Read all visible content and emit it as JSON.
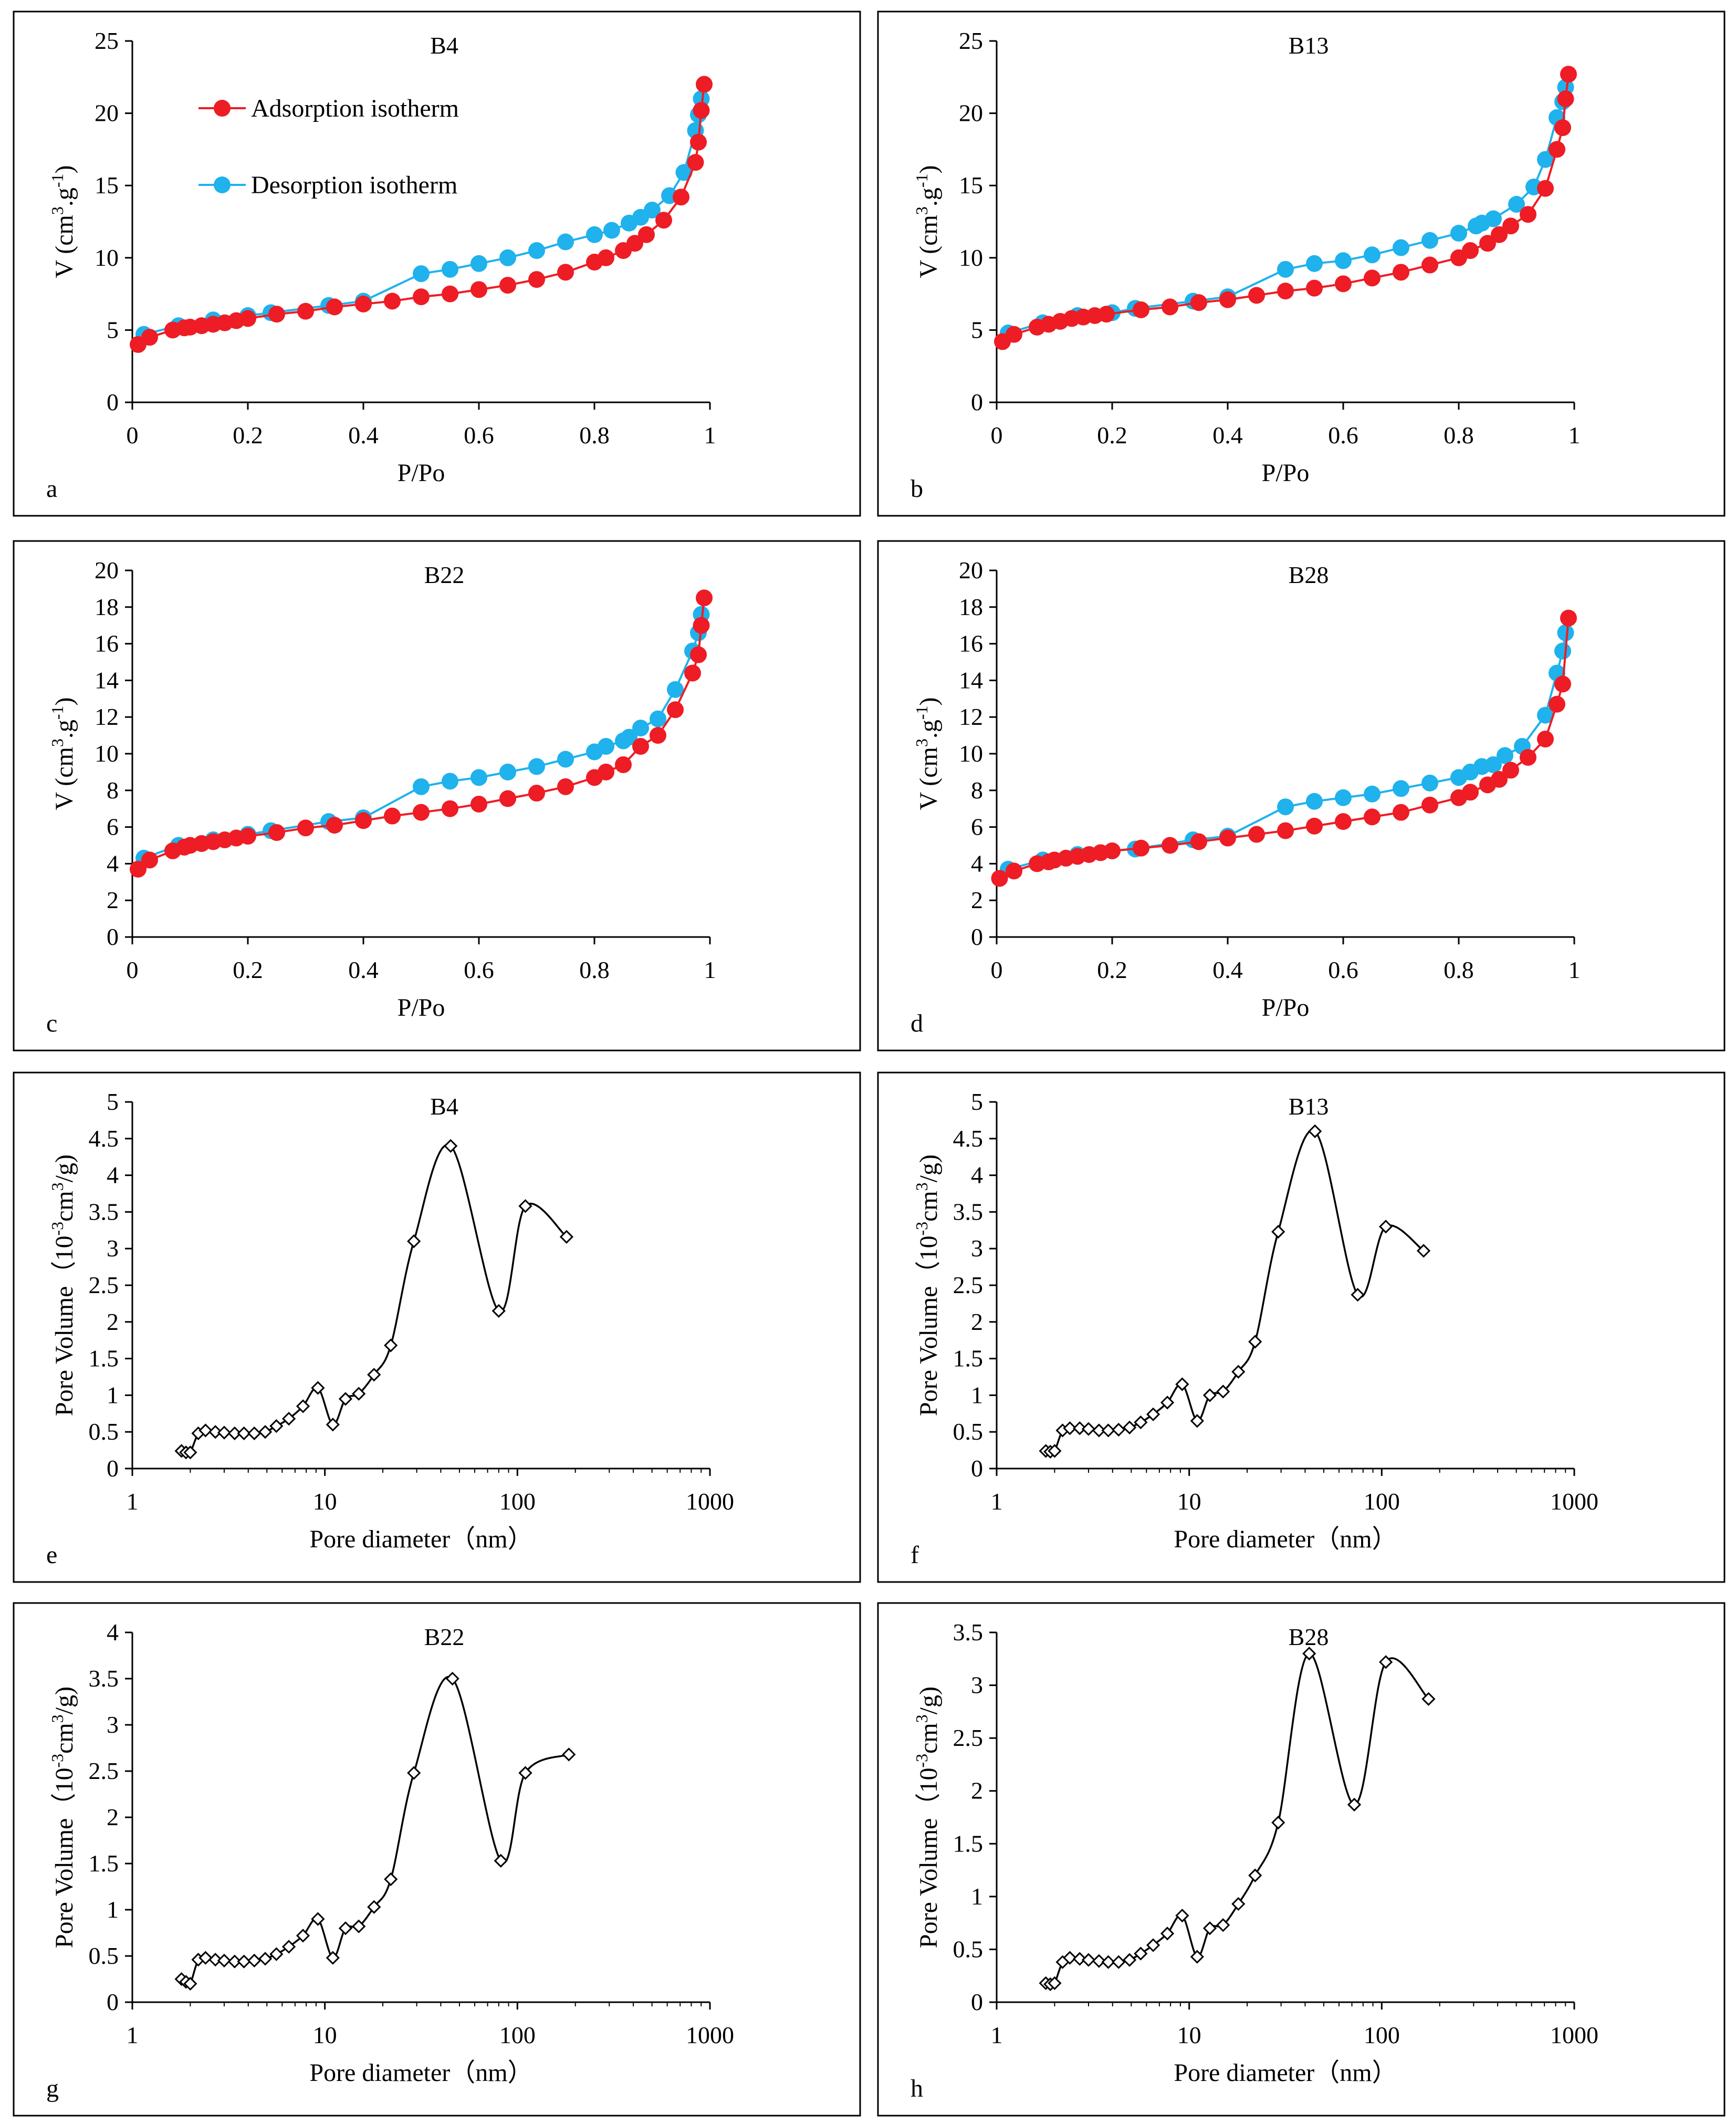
{
  "colors": {
    "adsorption": "#ee1c24",
    "desorption": "#1fb2ec",
    "pore_curve": "#000000",
    "frame": "#000000",
    "background": "#ffffff"
  },
  "chart_data": [
    {
      "type": "line",
      "panel_label": "a",
      "title": "B4",
      "xlabel": "P/Po",
      "ylabel_main": "V (cm",
      "ylabel_sup1": "3",
      "ylabel_mid": ".g",
      "ylabel_sup2": "-1",
      "ylabel_end": ")",
      "xlim": [
        0,
        1
      ],
      "ylim": [
        0,
        25
      ],
      "xticks": [
        0,
        0.2,
        0.4,
        0.6,
        0.8,
        1
      ],
      "xtick_labels": [
        "0",
        "0.2",
        "0.4",
        "0.6",
        "0.8",
        "1"
      ],
      "yticks": [
        0,
        5,
        10,
        15,
        20,
        25
      ],
      "ytick_labels": [
        "0",
        "5",
        "10",
        "15",
        "20",
        "25"
      ],
      "legend": {
        "placement": "top-left",
        "entries": [
          "Adsorption isotherm",
          "Desorption isotherm"
        ]
      },
      "series": [
        {
          "name": "Adsorption isotherm",
          "x": [
            0.01,
            0.03,
            0.07,
            0.09,
            0.1,
            0.12,
            0.14,
            0.16,
            0.18,
            0.2,
            0.25,
            0.3,
            0.35,
            0.4,
            0.45,
            0.5,
            0.55,
            0.6,
            0.65,
            0.7,
            0.75,
            0.8,
            0.82,
            0.85,
            0.87,
            0.89,
            0.92,
            0.95,
            0.975,
            0.98,
            0.985,
            0.99
          ],
          "y": [
            4.0,
            4.5,
            5.0,
            5.15,
            5.2,
            5.3,
            5.4,
            5.5,
            5.65,
            5.8,
            6.1,
            6.3,
            6.6,
            6.8,
            7.0,
            7.3,
            7.5,
            7.8,
            8.1,
            8.5,
            9.0,
            9.7,
            10.0,
            10.5,
            11.0,
            11.6,
            12.6,
            14.2,
            16.6,
            18.0,
            20.2,
            22.0
          ]
        },
        {
          "name": "Desorption isotherm",
          "x": [
            0.02,
            0.08,
            0.14,
            0.2,
            0.24,
            0.34,
            0.4,
            0.5,
            0.55,
            0.6,
            0.65,
            0.7,
            0.75,
            0.8,
            0.83,
            0.86,
            0.88,
            0.9,
            0.93,
            0.955,
            0.975,
            0.98,
            0.985,
            0.99
          ],
          "y": [
            4.7,
            5.3,
            5.7,
            6.0,
            6.2,
            6.7,
            7.0,
            8.9,
            9.2,
            9.6,
            10.0,
            10.5,
            11.1,
            11.6,
            11.9,
            12.4,
            12.8,
            13.3,
            14.3,
            15.9,
            18.8,
            19.9,
            21.0,
            22.0
          ]
        }
      ]
    },
    {
      "type": "line",
      "panel_label": "b",
      "title": "B13",
      "xlabel": "P/Po",
      "ylabel_main": "V (cm",
      "ylabel_sup1": "3",
      "ylabel_mid": ".g",
      "ylabel_sup2": "-1",
      "ylabel_end": ")",
      "xlim": [
        0,
        1
      ],
      "ylim": [
        0,
        25
      ],
      "xticks": [
        0,
        0.2,
        0.4,
        0.6,
        0.8,
        1
      ],
      "xtick_labels": [
        "0",
        "0.2",
        "0.4",
        "0.6",
        "0.8",
        "1"
      ],
      "yticks": [
        0,
        5,
        10,
        15,
        20,
        25
      ],
      "ytick_labels": [
        "0",
        "5",
        "10",
        "15",
        "20",
        "25"
      ],
      "series": [
        {
          "name": "Adsorption isotherm",
          "x": [
            0.01,
            0.03,
            0.07,
            0.09,
            0.11,
            0.13,
            0.15,
            0.17,
            0.19,
            0.25,
            0.3,
            0.35,
            0.4,
            0.45,
            0.5,
            0.55,
            0.6,
            0.65,
            0.7,
            0.75,
            0.8,
            0.82,
            0.85,
            0.87,
            0.89,
            0.92,
            0.95,
            0.97,
            0.98,
            0.985,
            0.99
          ],
          "y": [
            4.2,
            4.7,
            5.2,
            5.4,
            5.6,
            5.8,
            5.9,
            6.0,
            6.1,
            6.4,
            6.6,
            6.9,
            7.1,
            7.4,
            7.7,
            7.9,
            8.2,
            8.6,
            9.0,
            9.5,
            10.0,
            10.5,
            11.0,
            11.6,
            12.2,
            13.0,
            14.8,
            17.5,
            19.0,
            21.0,
            22.7
          ]
        },
        {
          "name": "Desorption isotherm",
          "x": [
            0.02,
            0.08,
            0.14,
            0.2,
            0.24,
            0.34,
            0.4,
            0.5,
            0.55,
            0.6,
            0.65,
            0.7,
            0.75,
            0.8,
            0.83,
            0.84,
            0.86,
            0.9,
            0.93,
            0.95,
            0.97,
            0.98,
            0.985
          ],
          "y": [
            4.8,
            5.5,
            6.0,
            6.2,
            6.5,
            7.0,
            7.3,
            9.2,
            9.6,
            9.8,
            10.2,
            10.7,
            11.2,
            11.7,
            12.2,
            12.4,
            12.7,
            13.7,
            14.9,
            16.8,
            19.7,
            20.8,
            21.8
          ]
        }
      ]
    },
    {
      "type": "line",
      "panel_label": "c",
      "title": "B22",
      "xlabel": "P/Po",
      "ylabel_main": "V (cm",
      "ylabel_sup1": "3",
      "ylabel_mid": ".g",
      "ylabel_sup2": "-1",
      "ylabel_end": ")",
      "xlim": [
        0,
        1
      ],
      "ylim": [
        0,
        20
      ],
      "xticks": [
        0,
        0.2,
        0.4,
        0.6,
        0.8,
        1
      ],
      "xtick_labels": [
        "0",
        "0.2",
        "0.4",
        "0.6",
        "0.8",
        "1"
      ],
      "yticks": [
        0,
        2,
        4,
        6,
        8,
        10,
        12,
        14,
        16,
        18,
        20
      ],
      "ytick_labels": [
        "0",
        "2",
        "4",
        "6",
        "8",
        "10",
        "12",
        "14",
        "16",
        "18",
        "20"
      ],
      "series": [
        {
          "name": "Adsorption isotherm",
          "x": [
            0.01,
            0.03,
            0.07,
            0.09,
            0.1,
            0.12,
            0.14,
            0.16,
            0.18,
            0.2,
            0.25,
            0.3,
            0.35,
            0.4,
            0.45,
            0.5,
            0.55,
            0.6,
            0.65,
            0.7,
            0.75,
            0.8,
            0.82,
            0.85,
            0.88,
            0.91,
            0.94,
            0.97,
            0.98,
            0.985,
            0.99
          ],
          "y": [
            3.7,
            4.2,
            4.7,
            4.9,
            5.0,
            5.1,
            5.2,
            5.3,
            5.4,
            5.5,
            5.7,
            5.95,
            6.1,
            6.35,
            6.6,
            6.8,
            7.0,
            7.25,
            7.55,
            7.85,
            8.2,
            8.7,
            9.0,
            9.4,
            10.4,
            11.0,
            12.4,
            14.4,
            15.4,
            17.0,
            18.5
          ]
        },
        {
          "name": "Desorption isotherm",
          "x": [
            0.02,
            0.08,
            0.14,
            0.2,
            0.24,
            0.34,
            0.4,
            0.5,
            0.55,
            0.6,
            0.65,
            0.7,
            0.75,
            0.8,
            0.82,
            0.85,
            0.86,
            0.88,
            0.91,
            0.94,
            0.97,
            0.98,
            0.985
          ],
          "y": [
            4.3,
            5.0,
            5.3,
            5.6,
            5.8,
            6.3,
            6.5,
            8.2,
            8.5,
            8.7,
            9.0,
            9.3,
            9.7,
            10.1,
            10.4,
            10.7,
            10.9,
            11.4,
            11.9,
            13.5,
            15.6,
            16.6,
            17.6
          ]
        }
      ]
    },
    {
      "type": "line",
      "panel_label": "d",
      "title": "B28",
      "xlabel": "P/Po",
      "ylabel_main": "V (cm",
      "ylabel_sup1": "3",
      "ylabel_mid": ".g",
      "ylabel_sup2": "-1",
      "ylabel_end": ")",
      "xlim": [
        0,
        1
      ],
      "ylim": [
        0,
        20
      ],
      "xticks": [
        0,
        0.2,
        0.4,
        0.6,
        0.8,
        1
      ],
      "xtick_labels": [
        "0",
        "0.2",
        "0.4",
        "0.6",
        "0.8",
        "1"
      ],
      "yticks": [
        0,
        2,
        4,
        6,
        8,
        10,
        12,
        14,
        16,
        18,
        20
      ],
      "ytick_labels": [
        "0",
        "2",
        "4",
        "6",
        "8",
        "10",
        "12",
        "14",
        "16",
        "18",
        "20"
      ],
      "series": [
        {
          "name": "Adsorption isotherm",
          "x": [
            0.005,
            0.03,
            0.07,
            0.09,
            0.1,
            0.12,
            0.14,
            0.16,
            0.18,
            0.2,
            0.25,
            0.3,
            0.35,
            0.4,
            0.45,
            0.5,
            0.55,
            0.6,
            0.65,
            0.7,
            0.75,
            0.8,
            0.82,
            0.85,
            0.87,
            0.89,
            0.92,
            0.95,
            0.97,
            0.98,
            0.99
          ],
          "y": [
            3.2,
            3.6,
            4.0,
            4.1,
            4.2,
            4.3,
            4.4,
            4.5,
            4.6,
            4.7,
            4.85,
            5.0,
            5.2,
            5.4,
            5.6,
            5.8,
            6.05,
            6.3,
            6.55,
            6.8,
            7.2,
            7.6,
            7.9,
            8.3,
            8.6,
            9.1,
            9.8,
            10.8,
            12.7,
            13.8,
            17.4
          ]
        },
        {
          "name": "Desorption isotherm",
          "x": [
            0.02,
            0.08,
            0.14,
            0.2,
            0.24,
            0.34,
            0.4,
            0.5,
            0.55,
            0.6,
            0.65,
            0.7,
            0.75,
            0.8,
            0.82,
            0.84,
            0.86,
            0.88,
            0.91,
            0.95,
            0.97,
            0.98,
            0.985
          ],
          "y": [
            3.7,
            4.2,
            4.5,
            4.7,
            4.8,
            5.3,
            5.5,
            7.1,
            7.4,
            7.6,
            7.8,
            8.1,
            8.4,
            8.7,
            9.0,
            9.3,
            9.4,
            9.9,
            10.4,
            12.1,
            14.4,
            15.6,
            16.6
          ]
        }
      ]
    },
    {
      "type": "line",
      "panel_label": "e",
      "title": "B4",
      "xlabel": "Pore diameter（nm）",
      "ylabel_main": "Pore Volume（10",
      "ylabel_sup1": "-3",
      "ylabel_mid": "cm",
      "ylabel_sup2": "3",
      "ylabel_end": "/g)",
      "xscale": "log",
      "xlim": [
        1,
        1000
      ],
      "ylim": [
        0,
        5
      ],
      "xticks": [
        1,
        10,
        100,
        1000
      ],
      "xtick_labels": [
        "1",
        "10",
        "100",
        "1000"
      ],
      "yticks": [
        0,
        0.5,
        1,
        1.5,
        2,
        2.5,
        3,
        3.5,
        4,
        4.5,
        5
      ],
      "ytick_labels": [
        "0",
        "0.5",
        "1",
        "1.5",
        "2",
        "2.5",
        "3",
        "3.5",
        "4",
        "4.5",
        "5"
      ],
      "series": [
        {
          "name": "Pore volume",
          "x": [
            1.8,
            1.9,
            2.0,
            2.2,
            2.4,
            2.7,
            3.0,
            3.4,
            3.8,
            4.3,
            4.9,
            5.6,
            6.5,
            7.7,
            9.2,
            11.0,
            12.8,
            15.0,
            18.0,
            22.0,
            29.0,
            45.0,
            80.0,
            110.0,
            180.0
          ],
          "y": [
            0.24,
            0.22,
            0.22,
            0.48,
            0.52,
            0.5,
            0.49,
            0.48,
            0.48,
            0.48,
            0.5,
            0.58,
            0.68,
            0.85,
            1.1,
            0.6,
            0.95,
            1.02,
            1.28,
            1.68,
            3.1,
            4.4,
            2.15,
            3.58,
            3.16
          ]
        }
      ]
    },
    {
      "type": "line",
      "panel_label": "f",
      "title": "B13",
      "xlabel": "Pore diameter（nm）",
      "ylabel_main": "Pore Volume（10",
      "ylabel_sup1": "-3",
      "ylabel_mid": "cm",
      "ylabel_sup2": "3",
      "ylabel_end": "/g)",
      "xscale": "log",
      "xlim": [
        1,
        1000
      ],
      "ylim": [
        0,
        5
      ],
      "xticks": [
        1,
        10,
        100,
        1000
      ],
      "xtick_labels": [
        "1",
        "10",
        "100",
        "1000"
      ],
      "yticks": [
        0,
        0.5,
        1,
        1.5,
        2,
        2.5,
        3,
        3.5,
        4,
        4.5,
        5
      ],
      "ytick_labels": [
        "0",
        "0.5",
        "1",
        "1.5",
        "2",
        "2.5",
        "3",
        "3.5",
        "4",
        "4.5",
        "5"
      ],
      "series": [
        {
          "name": "Pore volume",
          "x": [
            1.8,
            1.9,
            2.0,
            2.2,
            2.4,
            2.7,
            3.0,
            3.4,
            3.8,
            4.3,
            4.9,
            5.6,
            6.5,
            7.7,
            9.2,
            11.0,
            12.8,
            15.0,
            18.0,
            22.0,
            29.0,
            45.0,
            75.0,
            105.0,
            165.0
          ],
          "y": [
            0.24,
            0.23,
            0.24,
            0.52,
            0.55,
            0.55,
            0.54,
            0.52,
            0.52,
            0.53,
            0.56,
            0.63,
            0.74,
            0.9,
            1.15,
            0.65,
            1.0,
            1.05,
            1.32,
            1.73,
            3.23,
            4.6,
            2.37,
            3.3,
            2.97
          ]
        }
      ]
    },
    {
      "type": "line",
      "panel_label": "g",
      "title": "B22",
      "xlabel": "Pore diameter（nm）",
      "ylabel_main": "Pore Volume（10",
      "ylabel_sup1": "-3",
      "ylabel_mid": "cm",
      "ylabel_sup2": "3",
      "ylabel_end": "/g)",
      "xscale": "log",
      "xlim": [
        1,
        1000
      ],
      "ylim": [
        0,
        4
      ],
      "xticks": [
        1,
        10,
        100,
        1000
      ],
      "xtick_labels": [
        "1",
        "10",
        "100",
        "1000"
      ],
      "yticks": [
        0,
        0.5,
        1,
        1.5,
        2,
        2.5,
        3,
        3.5,
        4
      ],
      "ytick_labels": [
        "0",
        "0.5",
        "1",
        "1.5",
        "2",
        "2.5",
        "3",
        "3.5",
        "4"
      ],
      "series": [
        {
          "name": "Pore volume",
          "x": [
            1.8,
            1.9,
            2.0,
            2.2,
            2.4,
            2.7,
            3.0,
            3.4,
            3.8,
            4.3,
            4.9,
            5.6,
            6.5,
            7.7,
            9.2,
            11.0,
            12.8,
            15.0,
            18.0,
            22.0,
            29.0,
            46.0,
            82.0,
            110.0,
            185.0
          ],
          "y": [
            0.25,
            0.22,
            0.2,
            0.46,
            0.48,
            0.46,
            0.45,
            0.44,
            0.44,
            0.45,
            0.47,
            0.52,
            0.6,
            0.72,
            0.9,
            0.48,
            0.8,
            0.82,
            1.03,
            1.33,
            2.48,
            3.5,
            1.53,
            2.48,
            2.68
          ]
        }
      ]
    },
    {
      "type": "line",
      "panel_label": "h",
      "title": "B28",
      "xlabel": "Pore diameter（nm）",
      "ylabel_main": "Pore Volume（10",
      "ylabel_sup1": "-3",
      "ylabel_mid": "cm",
      "ylabel_sup2": "3",
      "ylabel_end": "/g)",
      "xscale": "log",
      "xlim": [
        1,
        1000
      ],
      "ylim": [
        0,
        3.5
      ],
      "xticks": [
        1,
        10,
        100,
        1000
      ],
      "xtick_labels": [
        "1",
        "10",
        "100",
        "1000"
      ],
      "yticks": [
        0,
        0.5,
        1,
        1.5,
        2,
        2.5,
        3,
        3.5
      ],
      "ytick_labels": [
        "0",
        "0.5",
        "1",
        "1.5",
        "2",
        "2.5",
        "3",
        "3.5"
      ],
      "series": [
        {
          "name": "Pore volume",
          "x": [
            1.8,
            1.9,
            2.0,
            2.2,
            2.4,
            2.7,
            3.0,
            3.4,
            3.8,
            4.3,
            4.9,
            5.6,
            6.5,
            7.7,
            9.2,
            11.0,
            12.8,
            15.0,
            18.0,
            22.0,
            29.0,
            42.0,
            72.0,
            105.0,
            175.0
          ],
          "y": [
            0.18,
            0.17,
            0.18,
            0.38,
            0.42,
            0.41,
            0.4,
            0.39,
            0.38,
            0.38,
            0.4,
            0.46,
            0.54,
            0.65,
            0.82,
            0.43,
            0.7,
            0.73,
            0.93,
            1.2,
            1.7,
            3.3,
            1.87,
            3.22,
            2.87
          ]
        }
      ]
    }
  ]
}
